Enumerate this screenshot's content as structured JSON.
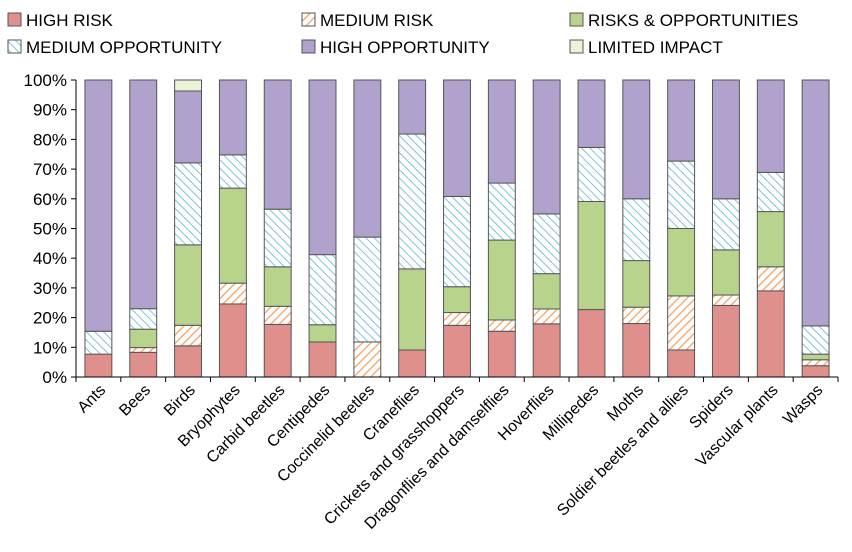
{
  "chart_data": {
    "type": "bar",
    "stacked": true,
    "percent": true,
    "ylim": [
      0,
      100
    ],
    "ytick_labels": [
      "0%",
      "10%",
      "20%",
      "30%",
      "40%",
      "50%",
      "60%",
      "70%",
      "80%",
      "90%",
      "100%"
    ],
    "grid": false,
    "legend_position": "top",
    "categories": [
      "Ants",
      "Bees",
      "Birds",
      "Bryophytes",
      "Carbid beetles",
      "Centipedes",
      "Coccinelid beetles",
      "Craneflies",
      "Crickets and grasshoppers",
      "Dragonflies and damselflies",
      "Hoverflies",
      "Millipedes",
      "Moths",
      "Soldier beetles and allies",
      "Spiders",
      "Vascular plants",
      "Wasps"
    ],
    "series": [
      {
        "name": "HIGH RISK",
        "color": "#e0908c",
        "pattern": "solid",
        "values": [
          7.7,
          8.3,
          10.5,
          24.6,
          17.7,
          11.8,
          0,
          9.1,
          17.4,
          15.4,
          17.9,
          22.7,
          18.0,
          9.1,
          24.1,
          29.0,
          3.8
        ]
      },
      {
        "name": "MEDIUM RISK",
        "color": "#f0a060",
        "pattern": "diag",
        "values": [
          0,
          1.6,
          6.9,
          7.0,
          6.1,
          0,
          11.8,
          0,
          4.3,
          3.8,
          5.0,
          0,
          5.5,
          18.2,
          3.5,
          8.1,
          2.0
        ]
      },
      {
        "name": "RISKS & OPPORTUNITIES",
        "color": "#b8d48c",
        "pattern": "solid",
        "values": [
          0,
          6.2,
          27.1,
          32.0,
          13.3,
          5.8,
          0,
          27.3,
          8.7,
          26.9,
          11.9,
          36.4,
          15.7,
          22.7,
          15.2,
          18.6,
          1.9
        ]
      },
      {
        "name": "MEDIUM OPPORTUNITY",
        "color": "#9ccfe0",
        "pattern": "diag-rev",
        "values": [
          7.7,
          6.9,
          27.6,
          11.2,
          19.4,
          23.6,
          35.3,
          45.4,
          30.4,
          19.2,
          20.1,
          18.2,
          20.8,
          22.7,
          17.2,
          13.2,
          9.5
        ]
      },
      {
        "name": "HIGH OPPORTUNITY",
        "color": "#b0a2cc",
        "pattern": "solid",
        "values": [
          84.6,
          77.0,
          24.2,
          25.2,
          43.5,
          58.8,
          52.9,
          18.2,
          39.2,
          34.7,
          45.1,
          22.7,
          40.0,
          27.3,
          40.0,
          31.1,
          82.8
        ]
      },
      {
        "name": "LIMITED IMPACT",
        "color": "#eaf2d8",
        "pattern": "solid",
        "values": [
          0,
          0,
          3.7,
          0,
          0,
          0,
          0,
          0,
          0,
          0,
          0,
          0,
          0,
          0,
          0,
          0,
          0
        ]
      }
    ]
  }
}
